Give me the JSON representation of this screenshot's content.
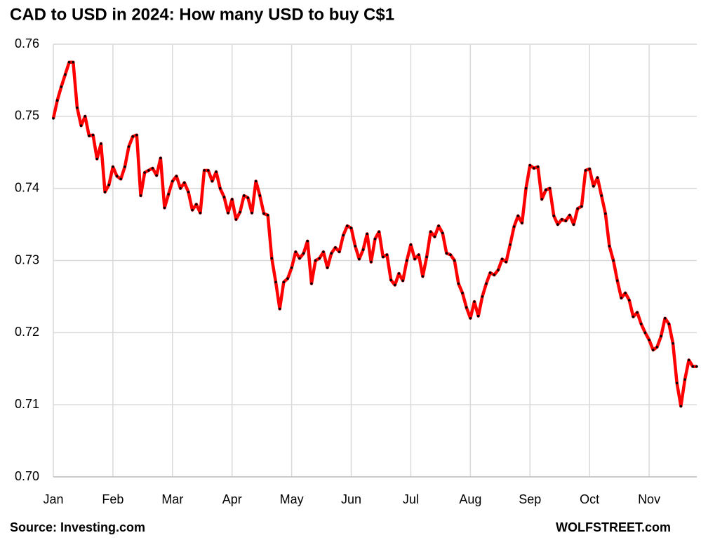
{
  "chart_data": {
    "type": "line",
    "title": "CAD to USD in 2024: How many USD to buy  C$1",
    "source": "Source: Investing.com",
    "brand": "WOLFSTREET.com",
    "color": "#ff0000",
    "marker_color": "#000000",
    "grid": true,
    "ylim": [
      0.7,
      0.76
    ],
    "yticks": [
      {
        "value": 0.7,
        "label": "0.70"
      },
      0.71,
      0.72,
      0.73,
      0.74,
      0.75,
      0.76
    ],
    "categories": [
      "Jan",
      null,
      null,
      null,
      null,
      null,
      null,
      null,
      null,
      null,
      null,
      null,
      null,
      null,
      null,
      "Feb",
      null,
      null,
      null,
      null,
      null,
      null,
      null,
      null,
      null,
      null,
      null,
      null,
      null,
      null,
      "Mar",
      null,
      null,
      null,
      null,
      null,
      null,
      null,
      null,
      null,
      null,
      null,
      null,
      null,
      null,
      "Apr",
      null,
      null,
      null,
      null,
      null,
      null,
      null,
      null,
      null,
      null,
      null,
      null,
      null,
      null,
      "May",
      null,
      null,
      null,
      null,
      null,
      null,
      null,
      null,
      null,
      null,
      null,
      null,
      null,
      null,
      "Jun",
      null,
      null,
      null,
      null,
      null,
      null,
      null,
      null,
      null,
      null,
      null,
      null,
      null,
      null,
      "Jul",
      null,
      null,
      null,
      null,
      null,
      null,
      null,
      null,
      null,
      null,
      null,
      null,
      null,
      null,
      "Aug",
      null,
      null,
      null,
      null,
      null,
      null,
      null,
      null,
      null,
      null,
      null,
      null,
      null,
      null,
      "Sep",
      null,
      null,
      null,
      null,
      null,
      null,
      null,
      null,
      null,
      null,
      null,
      null,
      null,
      null,
      "Oct",
      null,
      null,
      null,
      null,
      null,
      null,
      null,
      null,
      null,
      null,
      null,
      null,
      null,
      null,
      "Nov",
      null,
      null,
      null,
      null,
      null,
      null,
      null,
      null,
      null,
      null,
      null,
      null
    ],
    "values": [
      0.7497,
      0.7522,
      0.7541,
      0.7558,
      0.7575,
      0.7575,
      0.7512,
      0.7487,
      0.75,
      0.7473,
      0.7474,
      0.7441,
      0.7462,
      0.7395,
      0.7405,
      0.743,
      0.7417,
      0.7413,
      0.743,
      0.7458,
      0.7472,
      0.7474,
      0.739,
      0.7422,
      0.7425,
      0.7428,
      0.7418,
      0.7442,
      0.7373,
      0.7392,
      0.741,
      0.7417,
      0.74,
      0.7408,
      0.7395,
      0.737,
      0.7378,
      0.7366,
      0.7425,
      0.7425,
      0.741,
      0.7423,
      0.74,
      0.7388,
      0.7366,
      0.7385,
      0.7357,
      0.7367,
      0.739,
      0.7387,
      0.7366,
      0.741,
      0.739,
      0.7365,
      0.7363,
      0.7303,
      0.727,
      0.7233,
      0.727,
      0.7275,
      0.729,
      0.7312,
      0.7303,
      0.731,
      0.7327,
      0.7268,
      0.73,
      0.7303,
      0.7312,
      0.729,
      0.731,
      0.7318,
      0.7312,
      0.7335,
      0.7348,
      0.7345,
      0.732,
      0.7302,
      0.7315,
      0.7337,
      0.7298,
      0.733,
      0.734,
      0.7305,
      0.7308,
      0.7273,
      0.7266,
      0.7282,
      0.7272,
      0.73,
      0.7322,
      0.7302,
      0.7308,
      0.7278,
      0.7305,
      0.734,
      0.7333,
      0.7348,
      0.7338,
      0.731,
      0.7308,
      0.73,
      0.7268,
      0.7255,
      0.7235,
      0.722,
      0.7243,
      0.7223,
      0.725,
      0.7268,
      0.7283,
      0.728,
      0.7287,
      0.7302,
      0.7298,
      0.7322,
      0.7347,
      0.7362,
      0.7352,
      0.74,
      0.7432,
      0.7428,
      0.743,
      0.7385,
      0.7398,
      0.74,
      0.7362,
      0.735,
      0.7357,
      0.7355,
      0.7363,
      0.735,
      0.7372,
      0.7375,
      0.7425,
      0.7427,
      0.7403,
      0.7415,
      0.739,
      0.7365,
      0.732,
      0.73,
      0.7272,
      0.7248,
      0.7255,
      0.7245,
      0.7222,
      0.7228,
      0.7212,
      0.72,
      0.719,
      0.7176,
      0.718,
      0.7195,
      0.722,
      0.7212,
      0.7185,
      0.713,
      0.7098,
      0.7135,
      0.7162,
      0.7153,
      0.7153
    ]
  }
}
